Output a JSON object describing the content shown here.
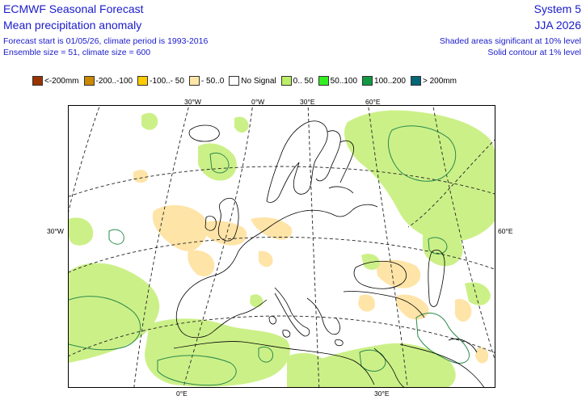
{
  "header": {
    "title_line1": "ECMWF Seasonal Forecast",
    "title_line2": "Mean precipitation anomaly",
    "subtitle_line1": "Forecast start is 01/05/26, climate period is 1993-2016",
    "subtitle_line2": "Ensemble size = 51, climate size = 600",
    "system": "System 5",
    "season": "JJA 2026",
    "note_line1": "Shaded areas significant at 10% level",
    "note_line2": "Solid contour at 1% level"
  },
  "legend": [
    {
      "label": "<-200mm",
      "color": "#993300"
    },
    {
      "label": "-200..-100",
      "color": "#cc8800"
    },
    {
      "label": "-100..- 50",
      "color": "#ffcc00"
    },
    {
      "label": "- 50..0",
      "color": "#ffe6a6"
    },
    {
      "label": "No Signal",
      "color": "#ffffff"
    },
    {
      "label": "0.. 50",
      "color": "#bbee66"
    },
    {
      "label": "50..100",
      "color": "#33ee22"
    },
    {
      "label": "100..200",
      "color": "#119944"
    },
    {
      "label": "> 200mm",
      "color": "#006677"
    }
  ],
  "axis_labels": {
    "top": [
      "30°W",
      "0°W",
      "30°E",
      "60°E"
    ],
    "left": "30°W",
    "right": "60°E",
    "bottom": [
      "0°E",
      "30°E"
    ]
  },
  "colors": {
    "positive_shade": "#ccf088",
    "negative_shade": "#ffe4a8",
    "contour": "#2a8a4a",
    "coast": "#000000"
  }
}
